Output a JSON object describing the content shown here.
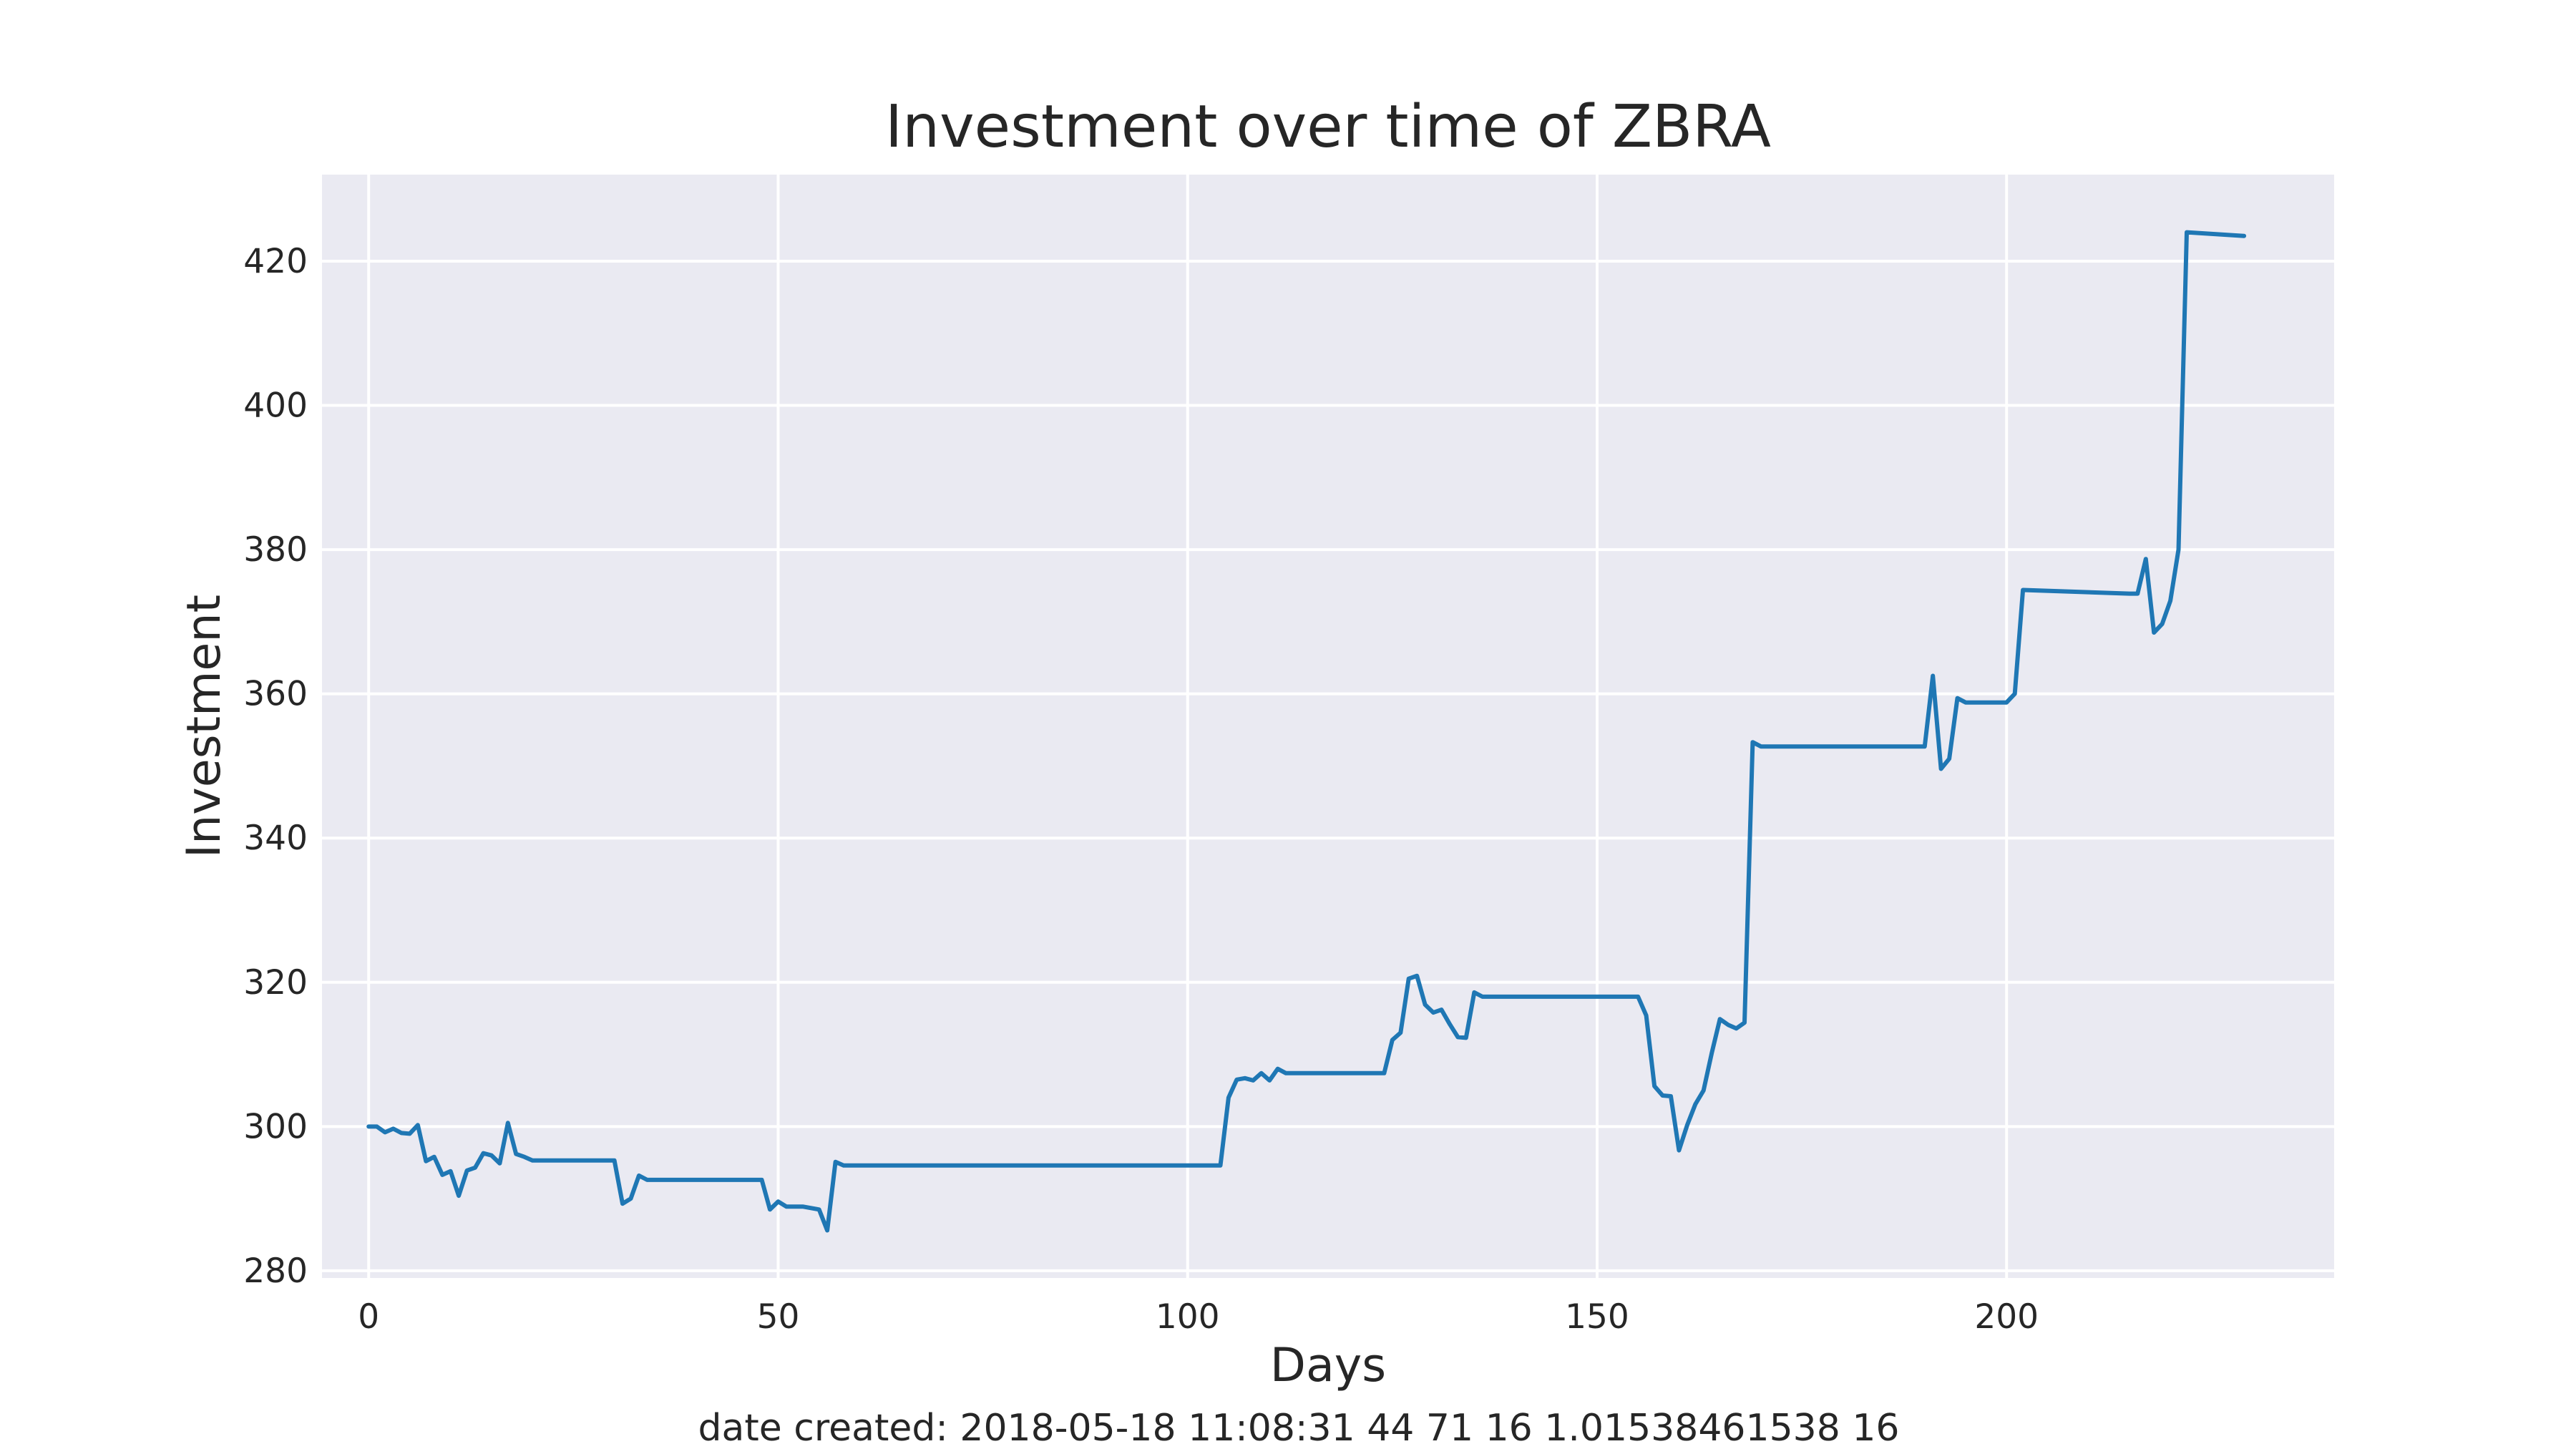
{
  "chart_data": {
    "type": "line",
    "title": "Investment over time of ZBRA",
    "xlabel": "Days",
    "ylabel": "Investment",
    "footer": "date created: 2018-05-18 11:08:31 44 71 16 1.01538461538 16",
    "xlim": [
      -5.7,
      240
    ],
    "ylim": [
      279,
      432
    ],
    "xticks": [
      0,
      50,
      100,
      150,
      200
    ],
    "yticks": [
      280,
      300,
      320,
      340,
      360,
      380,
      400,
      420
    ],
    "grid": true,
    "colors": {
      "line": "#1f77b4",
      "plot_bg": "#eaeaf2",
      "grid": "#ffffff"
    },
    "series": [
      {
        "x": [
          0,
          1,
          2,
          3,
          4,
          5,
          6,
          7,
          8,
          9,
          10,
          11,
          12,
          13,
          14,
          15,
          16,
          17,
          18,
          19,
          20,
          30,
          31,
          32,
          33,
          34,
          48,
          49,
          50,
          51,
          53,
          55,
          56,
          57,
          58,
          104,
          105,
          106,
          107,
          108,
          109,
          110,
          111,
          112,
          124,
          125,
          126,
          127,
          128,
          129,
          130,
          131,
          132,
          133,
          134,
          135,
          136,
          155,
          156,
          157,
          158,
          159,
          160,
          161,
          162,
          163,
          164,
          165,
          166,
          167,
          168,
          169,
          170,
          190,
          191,
          192,
          193,
          194,
          195,
          200,
          201,
          202,
          215,
          216,
          217,
          218,
          219,
          220,
          221,
          222,
          229
        ],
        "y": [
          300.0,
          300.0,
          299.2,
          299.7,
          299.1,
          299.0,
          300.2,
          295.2,
          295.8,
          293.3,
          293.8,
          290.4,
          293.9,
          294.3,
          296.3,
          296.0,
          294.9,
          300.5,
          296.2,
          295.8,
          295.3,
          295.3,
          289.3,
          290.0,
          293.2,
          292.6,
          292.6,
          288.5,
          289.6,
          288.9,
          288.9,
          288.5,
          285.6,
          295.1,
          294.6,
          294.6,
          304.0,
          306.5,
          306.7,
          306.4,
          307.4,
          306.4,
          308.0,
          307.4,
          307.4,
          312.0,
          313.0,
          320.5,
          320.9,
          316.9,
          315.8,
          316.2,
          314.2,
          312.4,
          312.3,
          318.6,
          318.0,
          318.0,
          315.4,
          305.6,
          304.3,
          304.2,
          296.7,
          300.2,
          303.1,
          305.0,
          310.2,
          314.9,
          314.1,
          313.6,
          314.4,
          353.3,
          352.7,
          352.7,
          362.5,
          349.6,
          351.0,
          359.4,
          358.8,
          358.8,
          360.0,
          374.4,
          373.9,
          373.9,
          378.7,
          368.5,
          369.7,
          372.9,
          380.0,
          424.0,
          423.5
        ]
      }
    ]
  }
}
